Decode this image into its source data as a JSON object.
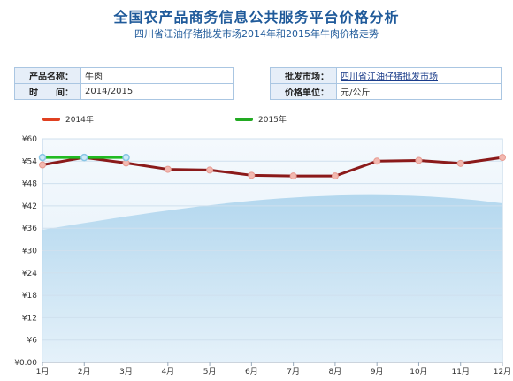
{
  "page": {
    "title": "全国农产品商务信息公共服务平台价格分析",
    "subtitle": "四川省江油仔猪批发市场2014年和2015年牛肉价格走势"
  },
  "info": {
    "product_label": "产品名称：",
    "product_value": "牛肉",
    "time_label": "时　　间：",
    "time_value": "2014/2015",
    "market_label": "批发市场：",
    "market_value": "四川省江油仔猪批发市场",
    "unit_label": "价格单位：",
    "unit_value": "元/公斤"
  },
  "chart_data": {
    "type": "line",
    "title": "",
    "xlabel": "",
    "ylabel": "",
    "categories": [
      "1月",
      "2月",
      "3月",
      "4月",
      "5月",
      "6月",
      "7月",
      "8月",
      "9月",
      "10月",
      "11月",
      "12月"
    ],
    "y_tick_labels": [
      "¥0.00",
      "¥6",
      "¥12",
      "¥18",
      "¥24",
      "¥30",
      "¥36",
      "¥42",
      "¥48",
      "¥54",
      "¥60"
    ],
    "ylim": [
      0,
      60
    ],
    "grid": true,
    "legend_position": "top-left",
    "series": [
      {
        "name": "2014年",
        "color": "#8b1a1a",
        "legend_color": "#e04020",
        "values": [
          53,
          55,
          53.5,
          51.8,
          51.6,
          50.2,
          50,
          50,
          54,
          54.2,
          53.4,
          55
        ]
      },
      {
        "name": "2015年",
        "color": "#22bb22",
        "legend_color": "#22aa22",
        "values": [
          55,
          55,
          55,
          null,
          null,
          null,
          null,
          null,
          null,
          null,
          null,
          null
        ]
      }
    ]
  }
}
